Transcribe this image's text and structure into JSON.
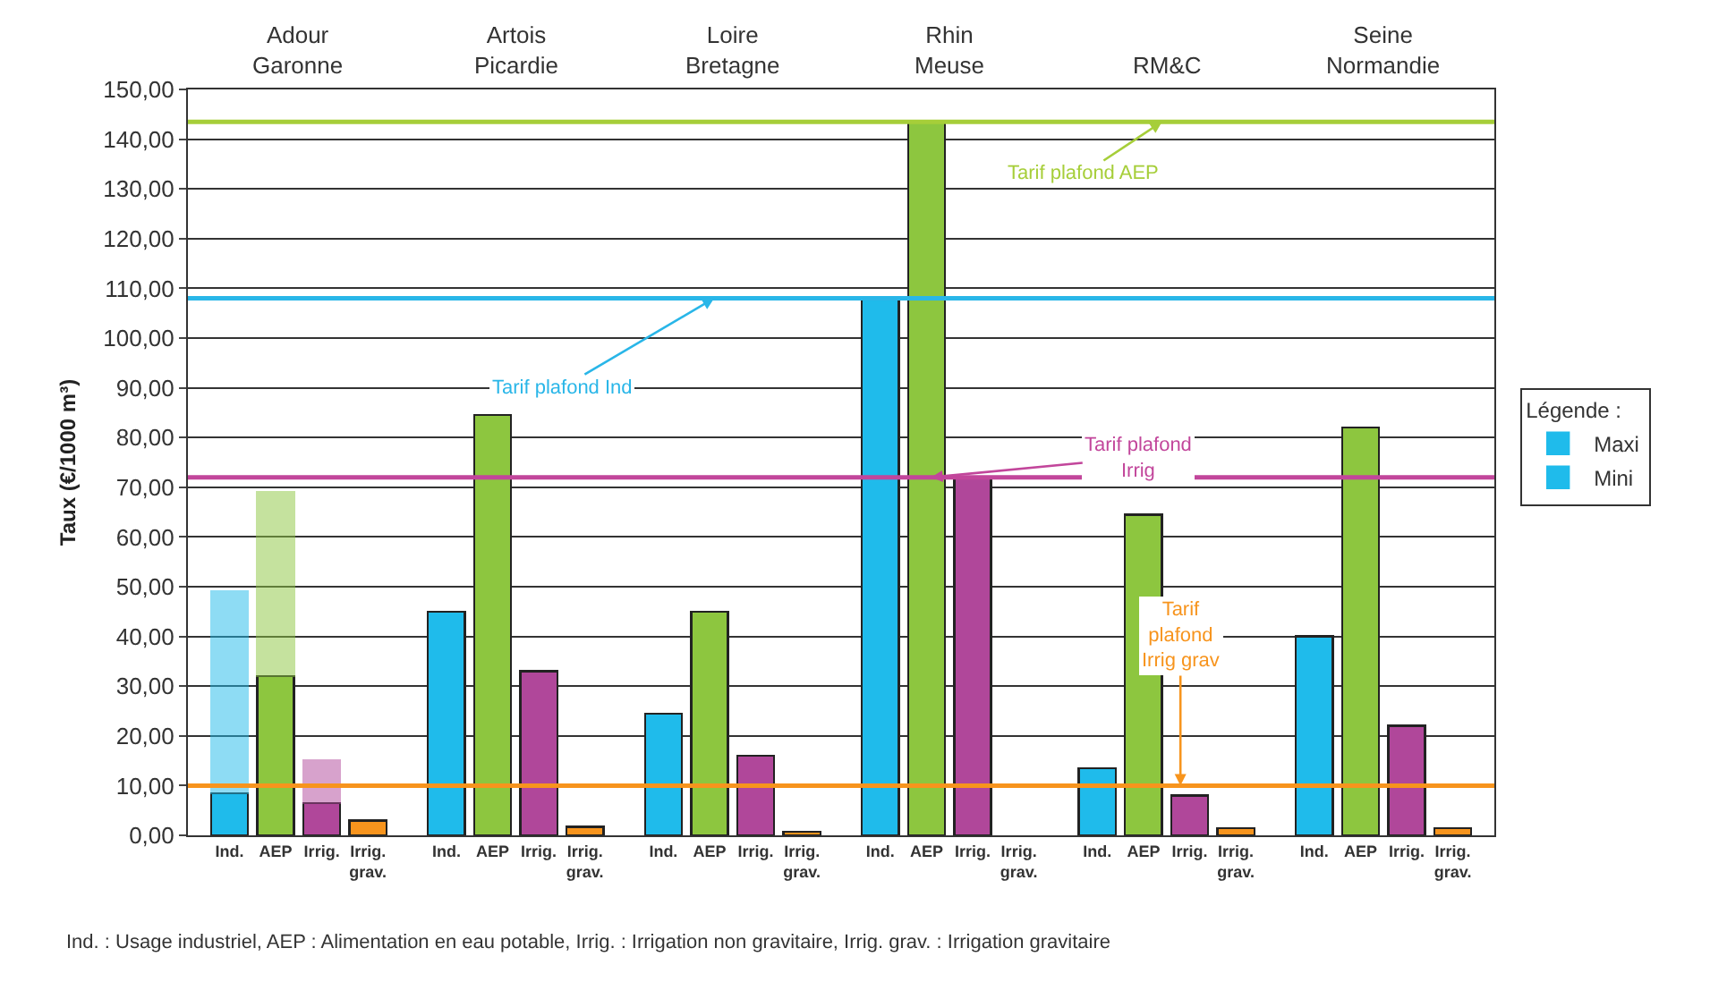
{
  "chart_data": {
    "type": "bar",
    "stacked": true,
    "ylabel": "Taux (€/1000 m³)",
    "legend_title": "Légende :",
    "legend": "right",
    "grid": "y",
    "categories": [
      "Ind.",
      "AEP",
      "Irrig.",
      "Irrig. grav.",
      "Ind.",
      "AEP",
      "Irrig.",
      "Irrig. grav.",
      "Ind.",
      "AEP",
      "Irrig.",
      "Irrig. grav.",
      "Ind.",
      "AEP",
      "Irrig.",
      "Irrig. grav.",
      "Ind.",
      "AEP",
      "Irrig.",
      "Irrig. grav.",
      "Ind.",
      "AEP",
      "Irrig.",
      "Irrig. grav."
    ],
    "series": [
      {
        "name": "Mini",
        "color": "#1fbbeb",
        "colors": [
          "#1fbbeb",
          "#8dc63f",
          "#b0479a",
          "#f7941d",
          "#1fbbeb",
          "#8dc63f",
          "#b0479a",
          "#f7941d",
          "#1fbbeb",
          "#8dc63f",
          "#b0479a",
          "#f7941d",
          "#1fbbeb",
          "#8dc63f",
          "#b0479a",
          "#f7941d",
          "#1fbbeb",
          "#8dc63f",
          "#b0479a",
          "#f7941d",
          "#1fbbeb",
          "#8dc63f",
          "#b0479a",
          "#f7941d"
        ],
        "values": [
          8.5,
          32,
          6.5,
          3,
          45,
          84.5,
          33,
          1.7,
          24.5,
          45,
          16,
          0.7,
          108,
          143.5,
          72,
          null,
          13.5,
          64.5,
          8,
          1.4,
          40,
          82,
          22,
          1.4
        ]
      },
      {
        "name": "Maxi",
        "color": "#1fbbeb",
        "colors": [
          "#1fbbeb",
          "#8dc63f",
          "#b0479a",
          "#f7941d",
          "#1fbbeb",
          "#8dc63f",
          "#b0479a",
          "#f7941d",
          "#1fbbeb",
          "#8dc63f",
          "#b0479a",
          "#f7941d",
          "#1fbbeb",
          "#8dc63f",
          "#b0479a",
          "#f7941d",
          "#1fbbeb",
          "#8dc63f",
          "#b0479a",
          "#f7941d",
          "#1fbbeb",
          "#8dc63f",
          "#b0479a",
          "#f7941d"
        ],
        "values": [
          40.5,
          37,
          8.5,
          null,
          null,
          null,
          null,
          null,
          null,
          null,
          null,
          null,
          null,
          null,
          null,
          null,
          null,
          null,
          null,
          null,
          null,
          null,
          null,
          null
        ]
      }
    ],
    "ylim": [
      0,
      150
    ],
    "yticks": [
      {
        "value": 0,
        "label": "0,00"
      },
      {
        "value": 10,
        "label": "10,00"
      },
      {
        "value": 20,
        "label": "20,00"
      },
      {
        "value": 30,
        "label": "30,00"
      },
      {
        "value": 40,
        "label": "40,00"
      },
      {
        "value": 50,
        "label": "50,00"
      },
      {
        "value": 60,
        "label": "60,00"
      },
      {
        "value": 70,
        "label": "70,00"
      },
      {
        "value": 80,
        "label": "80,00"
      },
      {
        "value": 90,
        "label": "90,00"
      },
      {
        "value": 100,
        "label": "100,00"
      },
      {
        "value": 110,
        "label": "110,00"
      },
      {
        "value": 120,
        "label": "120,00"
      },
      {
        "value": 130,
        "label": "130,00"
      },
      {
        "value": 140,
        "label": "140,00"
      },
      {
        "value": 150,
        "label": "150,00"
      }
    ],
    "ref_lines": [
      {
        "axis": "y",
        "value": 143.5,
        "label": "Tarif plafond AEP",
        "color": "#a6ce39"
      },
      {
        "axis": "y",
        "value": 108,
        "label": "Tarif plafond Ind",
        "color": "#29b6e8"
      },
      {
        "axis": "y",
        "value": 72,
        "label": "Tarif plafond Irrig",
        "color": "#c2469b"
      },
      {
        "axis": "y",
        "value": 10,
        "label": "Tarif plafond Irrig grav",
        "color": "#f7941d"
      }
    ],
    "annotations": [
      "Adour Garonne",
      "Artois Picardie",
      "Loire Bretagne",
      "Rhin Meuse",
      "RM&C",
      "Seine Normandie",
      "Ind. : Usage industriel, AEP : Alimentation en eau potable, Irrig. : Irrigation non gravitaire, Irrig. grav. : Irrigation gravitaire"
    ]
  }
}
